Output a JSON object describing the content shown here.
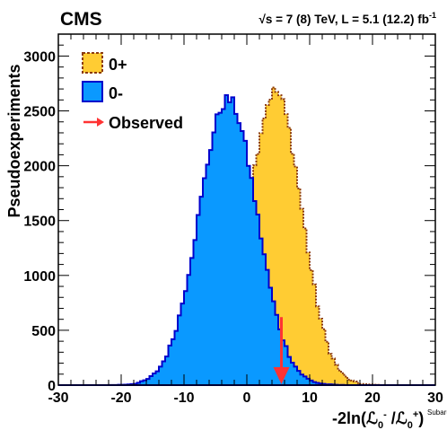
{
  "header": {
    "experiment": "CMS",
    "energy": "√s = 7 (8) TeV, L = 5.1 (12.2) fb",
    "energy_sup": "-1"
  },
  "legend": {
    "items": [
      {
        "label": "0+",
        "color": "#ffcc33",
        "edge": "#8b3a0f",
        "style": "dashed"
      },
      {
        "label": "0-",
        "color": "#0a99ff",
        "edge": "#0000cc",
        "style": "solid"
      },
      {
        "label": "Observed",
        "color": "#ff3333",
        "style": "arrow"
      }
    ]
  },
  "chart_data": {
    "type": "histogram",
    "xlabel_main": "-2ln(ℒ",
    "xlabel_sub1": "0",
    "xlabel_sup1": "-",
    "xlabel_mid": " /ℒ",
    "xlabel_sub2": "0",
    "xlabel_sup2": "+",
    "xlabel_close": ")",
    "xlabel_stamp": "Subaru",
    "ylabel": "Pseudoexperiments",
    "xlim": [
      -30,
      30
    ],
    "ylim": [
      0,
      3200
    ],
    "xticks": [
      "-30",
      "-20",
      "-10",
      "0",
      "10",
      "20",
      "30"
    ],
    "yticks": [
      "0",
      "500",
      "1000",
      "1500",
      "2000",
      "2500",
      "3000"
    ],
    "series": [
      {
        "name": "0+",
        "mean": 4.5,
        "sigma": 4.2,
        "peak": 2680,
        "color": "#ffcc33",
        "edge": "#8b3a0f"
      },
      {
        "name": "0-",
        "mean": -3.0,
        "sigma": 4.6,
        "peak": 2600,
        "color": "#0a99ff",
        "edge": "#0000cc"
      }
    ],
    "observed": 5.5,
    "observed_arrow_top": 620
  }
}
